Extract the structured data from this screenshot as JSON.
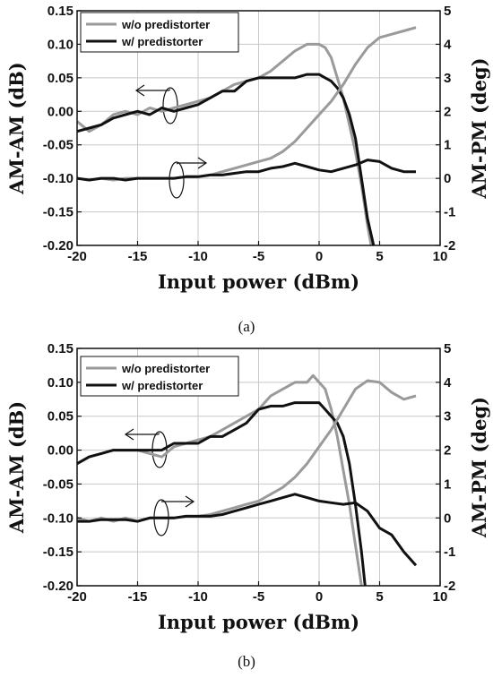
{
  "figure": {
    "subcaptions": [
      "(a)",
      "(b)"
    ]
  },
  "colors": {
    "without": "#9a9a9a",
    "with": "#111111",
    "grid": "#c8c8c8"
  },
  "chart_data": [
    {
      "type": "line",
      "panel": "(a)",
      "xlabel": "Input power (dBm)",
      "ylabel": "AM-AM (dB)",
      "y2label": "AM-PM (deg)",
      "xlim": [
        -20,
        10
      ],
      "ylim": [
        -0.2,
        0.15
      ],
      "y2lim": [
        -2,
        5
      ],
      "xticks": [
        "-20",
        "-15",
        "-10",
        "-5",
        "0",
        "5",
        "10"
      ],
      "yticks": [
        "-0.20",
        "-0.15",
        "-0.10",
        "-0.05",
        "0.00",
        "0.05",
        "0.10",
        "0.15"
      ],
      "y2ticks": [
        "-2",
        "-1",
        "0",
        "1",
        "2",
        "3",
        "4",
        "5"
      ],
      "grid": true,
      "legend": "top-left",
      "series": [
        {
          "name": "w/o predistorter",
          "axis": "left",
          "color": "#9a9a9a",
          "x": [
            -20,
            -19,
            -18,
            -17,
            -16,
            -15,
            -14,
            -13,
            -12,
            -11,
            -10,
            -9,
            -8,
            -7,
            -6,
            -5,
            -4,
            -3,
            -2,
            -1,
            0,
            0.5,
            1,
            1.5,
            2,
            2.5,
            3,
            3.5,
            4,
            4.3
          ],
          "y": [
            -0.015,
            -0.03,
            -0.02,
            -0.005,
            0,
            -0.005,
            0.005,
            0.0,
            0.005,
            0.01,
            0.015,
            0.02,
            0.03,
            0.04,
            0.045,
            0.05,
            0.06,
            0.075,
            0.09,
            0.1,
            0.1,
            0.095,
            0.08,
            0.05,
            0.02,
            -0.02,
            -0.06,
            -0.11,
            -0.17,
            -0.2
          ]
        },
        {
          "name": "w/ predistorter",
          "axis": "left",
          "color": "#111111",
          "x": [
            -20,
            -19,
            -18,
            -17,
            -16,
            -15,
            -14,
            -13,
            -12,
            -11,
            -10,
            -9,
            -8,
            -7,
            -6,
            -5,
            -4,
            -3,
            -2,
            -1,
            0,
            0.5,
            1,
            1.5,
            2,
            2.5,
            3,
            3.5,
            4,
            4.5
          ],
          "y": [
            -0.03,
            -0.025,
            -0.02,
            -0.01,
            -0.005,
            0.0,
            -0.005,
            0.005,
            0.0,
            0.005,
            0.01,
            0.02,
            0.03,
            0.03,
            0.045,
            0.05,
            0.05,
            0.05,
            0.05,
            0.055,
            0.055,
            0.05,
            0.045,
            0.035,
            0.02,
            -0.005,
            -0.04,
            -0.1,
            -0.16,
            -0.2
          ]
        },
        {
          "name": "w/o predistorter",
          "axis": "right",
          "color": "#9a9a9a",
          "x": [
            -20,
            -19,
            -18,
            -17,
            -16,
            -15,
            -14,
            -13,
            -12,
            -11,
            -10,
            -9,
            -8,
            -7,
            -6,
            -5,
            -4,
            -3,
            -2,
            -1,
            0,
            1,
            2,
            3,
            4,
            5,
            6,
            7,
            8
          ],
          "y": [
            0,
            -0.05,
            0,
            -0.05,
            0,
            0,
            0,
            0,
            0,
            0.05,
            0.05,
            0.1,
            0.2,
            0.3,
            0.4,
            0.5,
            0.6,
            0.8,
            1.1,
            1.5,
            1.9,
            2.3,
            2.8,
            3.4,
            3.9,
            4.2,
            4.3,
            4.4,
            4.5
          ]
        },
        {
          "name": "w/ predistorter",
          "axis": "right",
          "color": "#111111",
          "x": [
            -20,
            -19,
            -18,
            -17,
            -16,
            -15,
            -14,
            -13,
            -12,
            -11,
            -10,
            -9,
            -8,
            -7,
            -6,
            -5,
            -4,
            -3,
            -2,
            -1,
            0,
            1,
            2,
            3,
            4,
            5,
            6,
            7,
            8
          ],
          "y": [
            0,
            -0.05,
            0,
            0,
            -0.05,
            0,
            0,
            0,
            0,
            0.05,
            0.05,
            0.1,
            0.1,
            0.15,
            0.2,
            0.2,
            0.3,
            0.35,
            0.45,
            0.35,
            0.25,
            0.2,
            0.3,
            0.4,
            0.55,
            0.5,
            0.3,
            0.2,
            0.2
          ]
        }
      ]
    },
    {
      "type": "line",
      "panel": "(b)",
      "xlabel": "Input power (dBm)",
      "ylabel": "AM-AM (dB)",
      "y2label": "AM-PM (deg)",
      "xlim": [
        -20,
        10
      ],
      "ylim": [
        -0.2,
        0.15
      ],
      "y2lim": [
        -2,
        5
      ],
      "xticks": [
        "-20",
        "-15",
        "-10",
        "-5",
        "0",
        "5",
        "10"
      ],
      "yticks": [
        "-0.20",
        "-0.15",
        "-0.10",
        "-0.05",
        "0.00",
        "0.05",
        "0.10",
        "0.15"
      ],
      "y2ticks": [
        "-2",
        "-1",
        "0",
        "1",
        "2",
        "3",
        "4",
        "5"
      ],
      "grid": true,
      "legend": "top-left",
      "series": [
        {
          "name": "w/o predistorter",
          "axis": "left",
          "color": "#9a9a9a",
          "x": [
            -20,
            -19,
            -18,
            -17,
            -16,
            -15,
            -14,
            -13,
            -12,
            -11,
            -10,
            -9,
            -8,
            -7,
            -6,
            -5,
            -4,
            -3,
            -2,
            -1,
            -0.5,
            0,
            0.5,
            1,
            1.5,
            2,
            2.5,
            3,
            3.5
          ],
          "y": [
            -0.02,
            -0.01,
            -0.005,
            0.0,
            0.0,
            0.0,
            -0.005,
            -0.01,
            0.005,
            0.01,
            0.015,
            0.02,
            0.03,
            0.04,
            0.05,
            0.06,
            0.08,
            0.09,
            0.1,
            0.1,
            0.11,
            0.1,
            0.09,
            0.06,
            0.02,
            -0.03,
            -0.08,
            -0.14,
            -0.2
          ]
        },
        {
          "name": "w/ predistorter",
          "axis": "left",
          "color": "#111111",
          "x": [
            -20,
            -19,
            -18,
            -17,
            -16,
            -15,
            -14,
            -13,
            -12,
            -11,
            -10,
            -9,
            -8,
            -7,
            -6,
            -5,
            -4,
            -3,
            -2,
            -1,
            0,
            0.5,
            1,
            1.5,
            2,
            2.5,
            3,
            3.5,
            3.8
          ],
          "y": [
            -0.02,
            -0.01,
            -0.005,
            0.0,
            0.0,
            0.0,
            0.0,
            0.0,
            0.01,
            0.01,
            0.01,
            0.02,
            0.02,
            0.03,
            0.04,
            0.06,
            0.065,
            0.065,
            0.07,
            0.07,
            0.07,
            0.06,
            0.05,
            0.04,
            0.02,
            -0.02,
            -0.08,
            -0.15,
            -0.2
          ]
        },
        {
          "name": "w/o predistorter",
          "axis": "right",
          "color": "#9a9a9a",
          "x": [
            -20,
            -19,
            -18,
            -17,
            -16,
            -15,
            -14,
            -13,
            -12,
            -11,
            -10,
            -9,
            -8,
            -7,
            -6,
            -5,
            -4,
            -3,
            -2,
            -1,
            0,
            1,
            2,
            3,
            4,
            5,
            6,
            7,
            8
          ],
          "y": [
            0,
            -0.1,
            0,
            -0.1,
            0,
            -0.1,
            0,
            0,
            0,
            0.05,
            0.05,
            0.1,
            0.2,
            0.3,
            0.4,
            0.5,
            0.7,
            0.9,
            1.2,
            1.6,
            2.1,
            2.6,
            3.2,
            3.8,
            4.05,
            4.0,
            3.7,
            3.5,
            3.6
          ]
        },
        {
          "name": "w/ predistorter",
          "axis": "right",
          "color": "#111111",
          "x": [
            -20,
            -19,
            -18,
            -17,
            -16,
            -15,
            -14,
            -13,
            -12,
            -11,
            -10,
            -9,
            -8,
            -7,
            -6,
            -5,
            -4,
            -3,
            -2,
            -1,
            0,
            1,
            2,
            3,
            4,
            5,
            6,
            7,
            8
          ],
          "y": [
            -0.1,
            -0.1,
            -0.05,
            -0.05,
            -0.05,
            -0.1,
            0,
            0,
            0,
            0.05,
            0.05,
            0.05,
            0.1,
            0.2,
            0.3,
            0.4,
            0.5,
            0.6,
            0.7,
            0.6,
            0.5,
            0.45,
            0.4,
            0.45,
            0.2,
            -0.3,
            -0.5,
            -1.0,
            -1.4
          ]
        }
      ]
    }
  ]
}
